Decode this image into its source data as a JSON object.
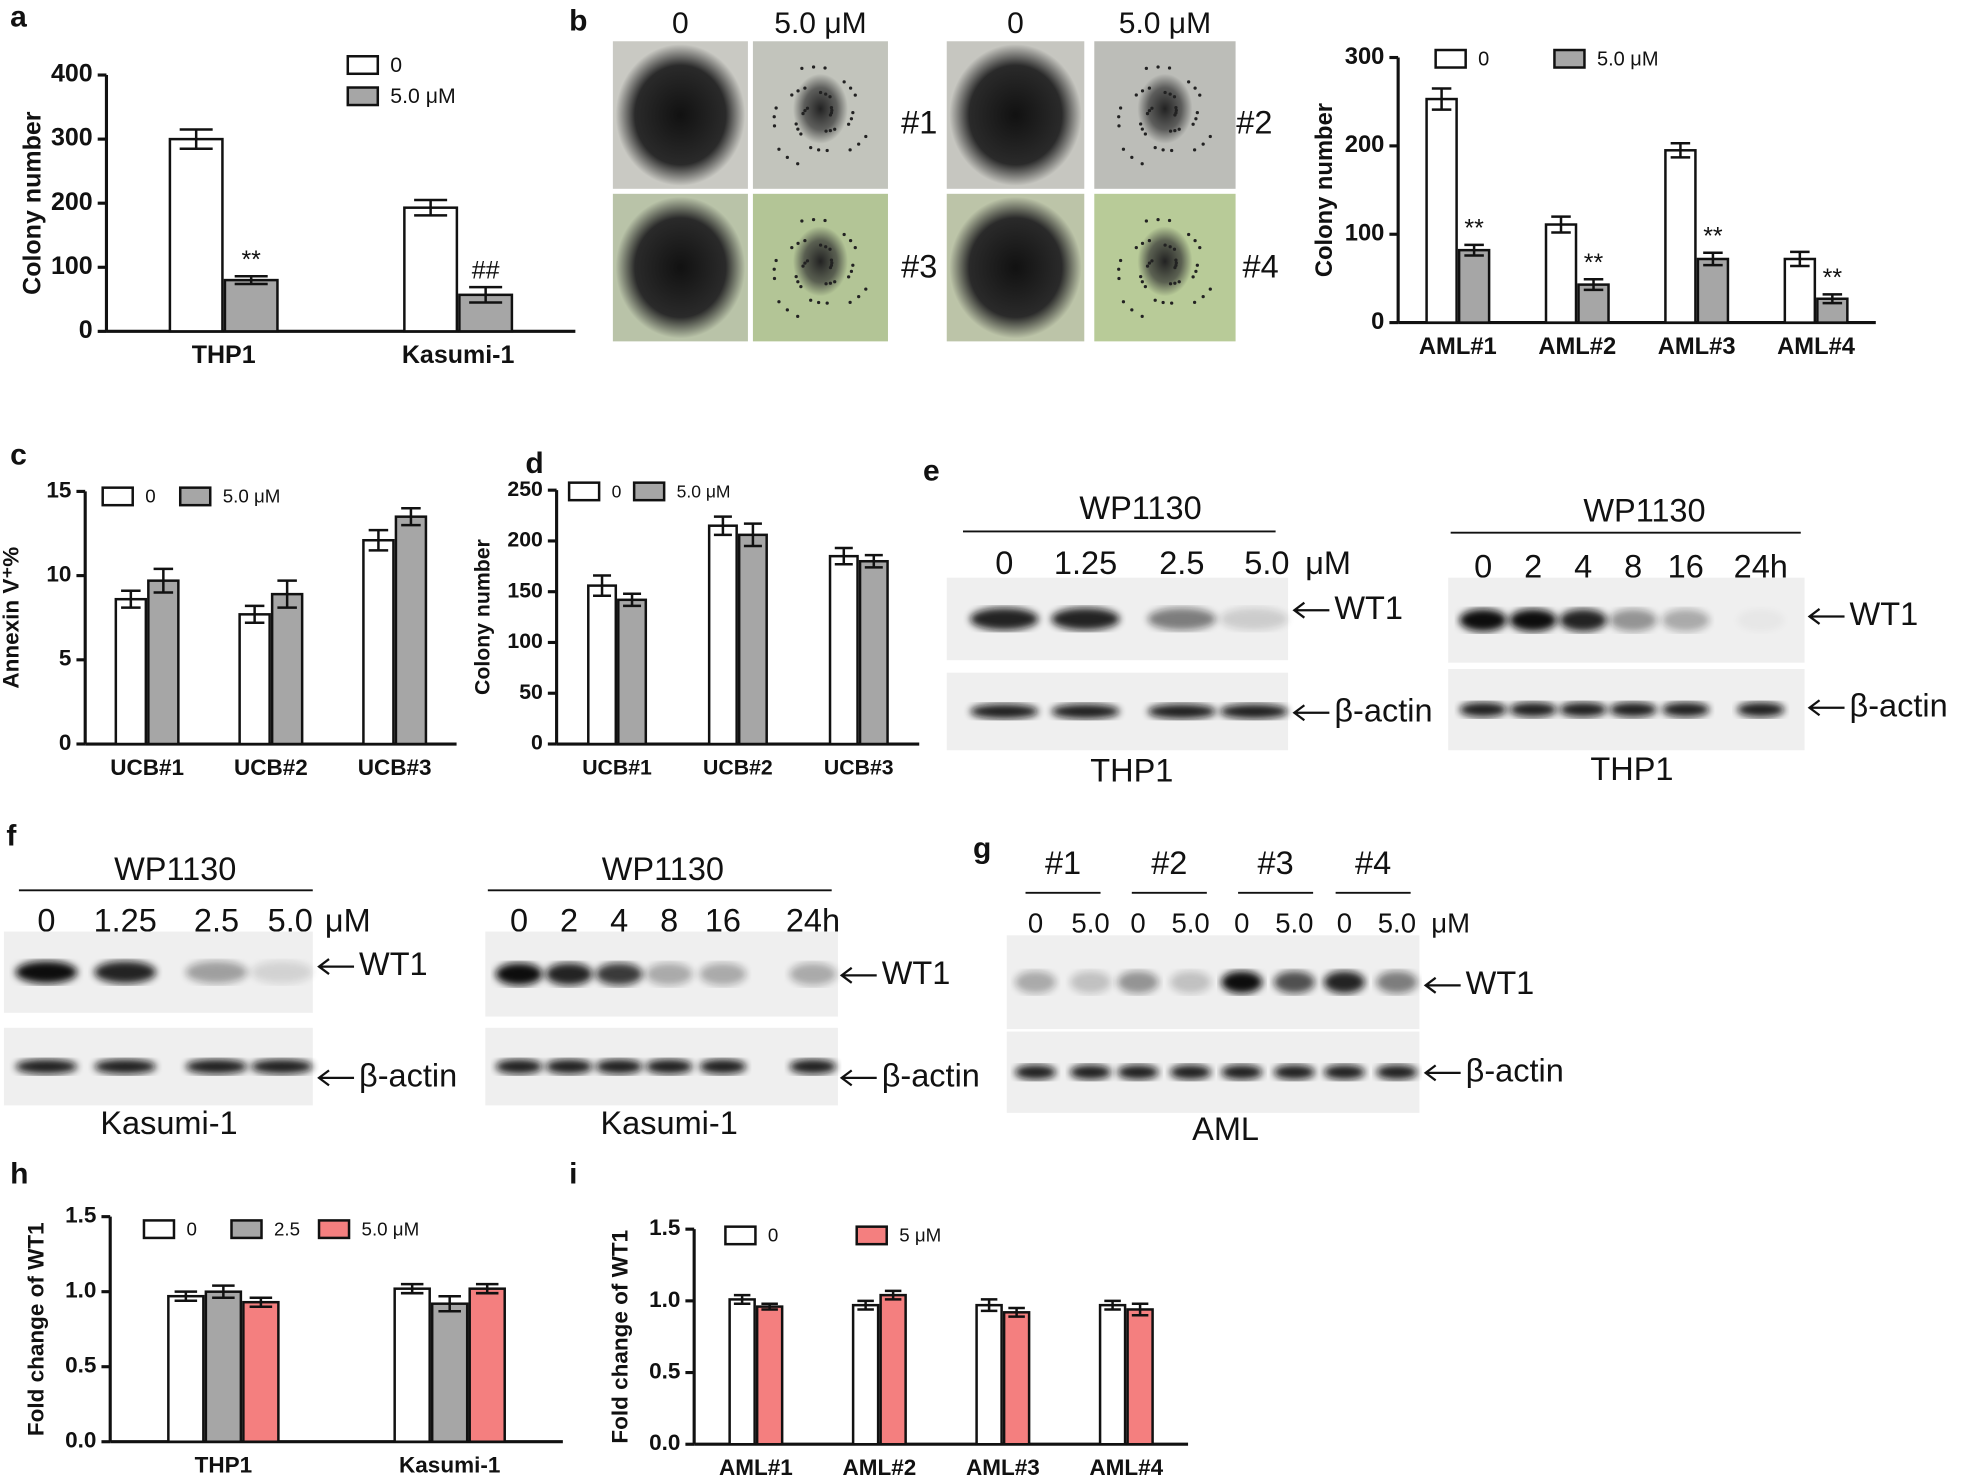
{
  "chart_data": [
    {
      "type": "bar",
      "panel": "a",
      "y_label": "Colony number",
      "categories": [
        "THP1",
        "Kasumi-1"
      ],
      "ylim": [
        0,
        400
      ],
      "yticks": [
        0,
        100,
        200,
        300,
        400
      ],
      "series": [
        {
          "name": "0",
          "color": "#ffffff",
          "values": [
            300,
            193
          ],
          "errors": [
            15,
            12
          ]
        },
        {
          "name": "5.0 μM",
          "color": "#a6a6a6",
          "values": [
            80,
            57
          ],
          "errors": [
            6,
            12
          ],
          "significance": [
            "**",
            "##"
          ]
        }
      ]
    },
    {
      "type": "bar",
      "panel": "b",
      "y_label": "Colony number",
      "categories": [
        "AML#1",
        "AML#2",
        "AML#3",
        "AML#4"
      ],
      "ylim": [
        0,
        300
      ],
      "yticks": [
        0,
        100,
        200,
        300
      ],
      "series": [
        {
          "name": "0",
          "color": "#ffffff",
          "values": [
            253,
            111,
            195,
            72
          ],
          "errors": [
            12,
            9,
            8,
            8
          ]
        },
        {
          "name": "5.0 μM",
          "color": "#a6a6a6",
          "values": [
            82,
            43,
            72,
            27
          ],
          "errors": [
            6,
            6,
            7,
            5
          ],
          "significance": [
            "**",
            "**",
            "**",
            "**"
          ]
        }
      ]
    },
    {
      "type": "bar",
      "panel": "c",
      "y_label": "Annexin V⁺%",
      "categories": [
        "UCB#1",
        "UCB#2",
        "UCB#3"
      ],
      "ylim": [
        0,
        15
      ],
      "yticks": [
        0,
        5,
        10,
        15
      ],
      "series": [
        {
          "name": "0",
          "color": "#ffffff",
          "values": [
            8.6,
            7.7,
            12.1
          ],
          "errors": [
            0.5,
            0.5,
            0.6
          ]
        },
        {
          "name": "5.0 μM",
          "color": "#a6a6a6",
          "values": [
            9.7,
            8.9,
            13.5
          ],
          "errors": [
            0.7,
            0.8,
            0.5
          ]
        }
      ]
    },
    {
      "type": "bar",
      "panel": "d",
      "y_label": "Colony number",
      "categories": [
        "UCB#1",
        "UCB#2",
        "UCB#3"
      ],
      "ylim": [
        0,
        250
      ],
      "yticks": [
        0,
        50,
        100,
        150,
        200,
        250
      ],
      "series": [
        {
          "name": "0",
          "color": "#ffffff",
          "values": [
            156,
            215,
            185
          ],
          "errors": [
            10,
            9,
            8
          ]
        },
        {
          "name": "5.0 μM",
          "color": "#a6a6a6",
          "values": [
            142,
            206,
            180
          ],
          "errors": [
            6,
            11,
            6
          ]
        }
      ]
    },
    {
      "type": "bar",
      "panel": "h",
      "y_label": "Fold change of WT1",
      "categories": [
        "THP1",
        "Kasumi-1"
      ],
      "ylim": [
        0,
        1.5
      ],
      "yticks": [
        {
          "value": 0,
          "label": "0.0"
        },
        0.5,
        {
          "value": 1,
          "label": "1.0"
        },
        1.5
      ],
      "series": [
        {
          "name": "0",
          "color": "#ffffff",
          "values": [
            0.97,
            1.02
          ],
          "errors": [
            0.03,
            0.03
          ]
        },
        {
          "name": "2.5",
          "color": "#a6a6a6",
          "values": [
            1.0,
            0.92
          ],
          "errors": [
            0.04,
            0.05
          ]
        },
        {
          "name": "5.0 μM",
          "color": "#f47f7f",
          "values": [
            0.93,
            1.02
          ],
          "errors": [
            0.03,
            0.03
          ]
        }
      ]
    },
    {
      "type": "bar",
      "panel": "i",
      "y_label": "Fold change of WT1",
      "categories": [
        "AML#1",
        "AML#2",
        "AML#3",
        "AML#4"
      ],
      "ylim": [
        0,
        1.5
      ],
      "yticks": [
        {
          "value": 0,
          "label": "0.0"
        },
        0.5,
        {
          "value": 1,
          "label": "1.0"
        },
        1.5
      ],
      "series": [
        {
          "name": "0",
          "color": "#ffffff",
          "values": [
            1.01,
            0.97,
            0.97,
            0.97
          ],
          "errors": [
            0.03,
            0.03,
            0.04,
            0.03
          ]
        },
        {
          "name": "5 μM",
          "color": "#f47f7f",
          "values": [
            0.96,
            1.04,
            0.92,
            0.94
          ],
          "errors": [
            0.02,
            0.03,
            0.03,
            0.04
          ]
        }
      ]
    }
  ],
  "micrographs": {
    "columns": [
      "0",
      "5.0 μM",
      "0",
      "5.0 μM"
    ],
    "samples": [
      "#1",
      "#2",
      "#3",
      "#4"
    ]
  },
  "blots": [
    {
      "panel": "e",
      "treatment": "WP1130",
      "lanes": [
        "0",
        "1.25",
        "2.5",
        "5.0"
      ],
      "unit": "μM",
      "targets": [
        "WT1",
        "β-actin"
      ],
      "cell": "THP1"
    },
    {
      "treatment": "WP1130",
      "lanes": [
        "0",
        "2",
        "4",
        "8",
        "16",
        "24h"
      ],
      "targets": [
        "WT1",
        "β-actin"
      ],
      "cell": "THP1"
    },
    {
      "panel": "f",
      "treatment": "WP1130",
      "lanes": [
        "0",
        "1.25",
        "2.5",
        "5.0"
      ],
      "unit": "μM",
      "targets": [
        "WT1",
        "β-actin"
      ],
      "cell": "Kasumi-1"
    },
    {
      "treatment": "WP1130",
      "lanes": [
        "0",
        "2",
        "4",
        "8",
        "16",
        "24h"
      ],
      "targets": [
        "WT1",
        "β-actin"
      ],
      "cell": "Kasumi-1"
    },
    {
      "panel": "g",
      "groups": [
        "#1",
        "#2",
        "#3",
        "#4"
      ],
      "lanes": [
        "0",
        "5.0",
        "0",
        "5.0",
        "0",
        "5.0",
        "0",
        "5.0"
      ],
      "unit": "μM",
      "targets": [
        "WT1",
        "β-actin"
      ],
      "cell": "AML"
    }
  ]
}
